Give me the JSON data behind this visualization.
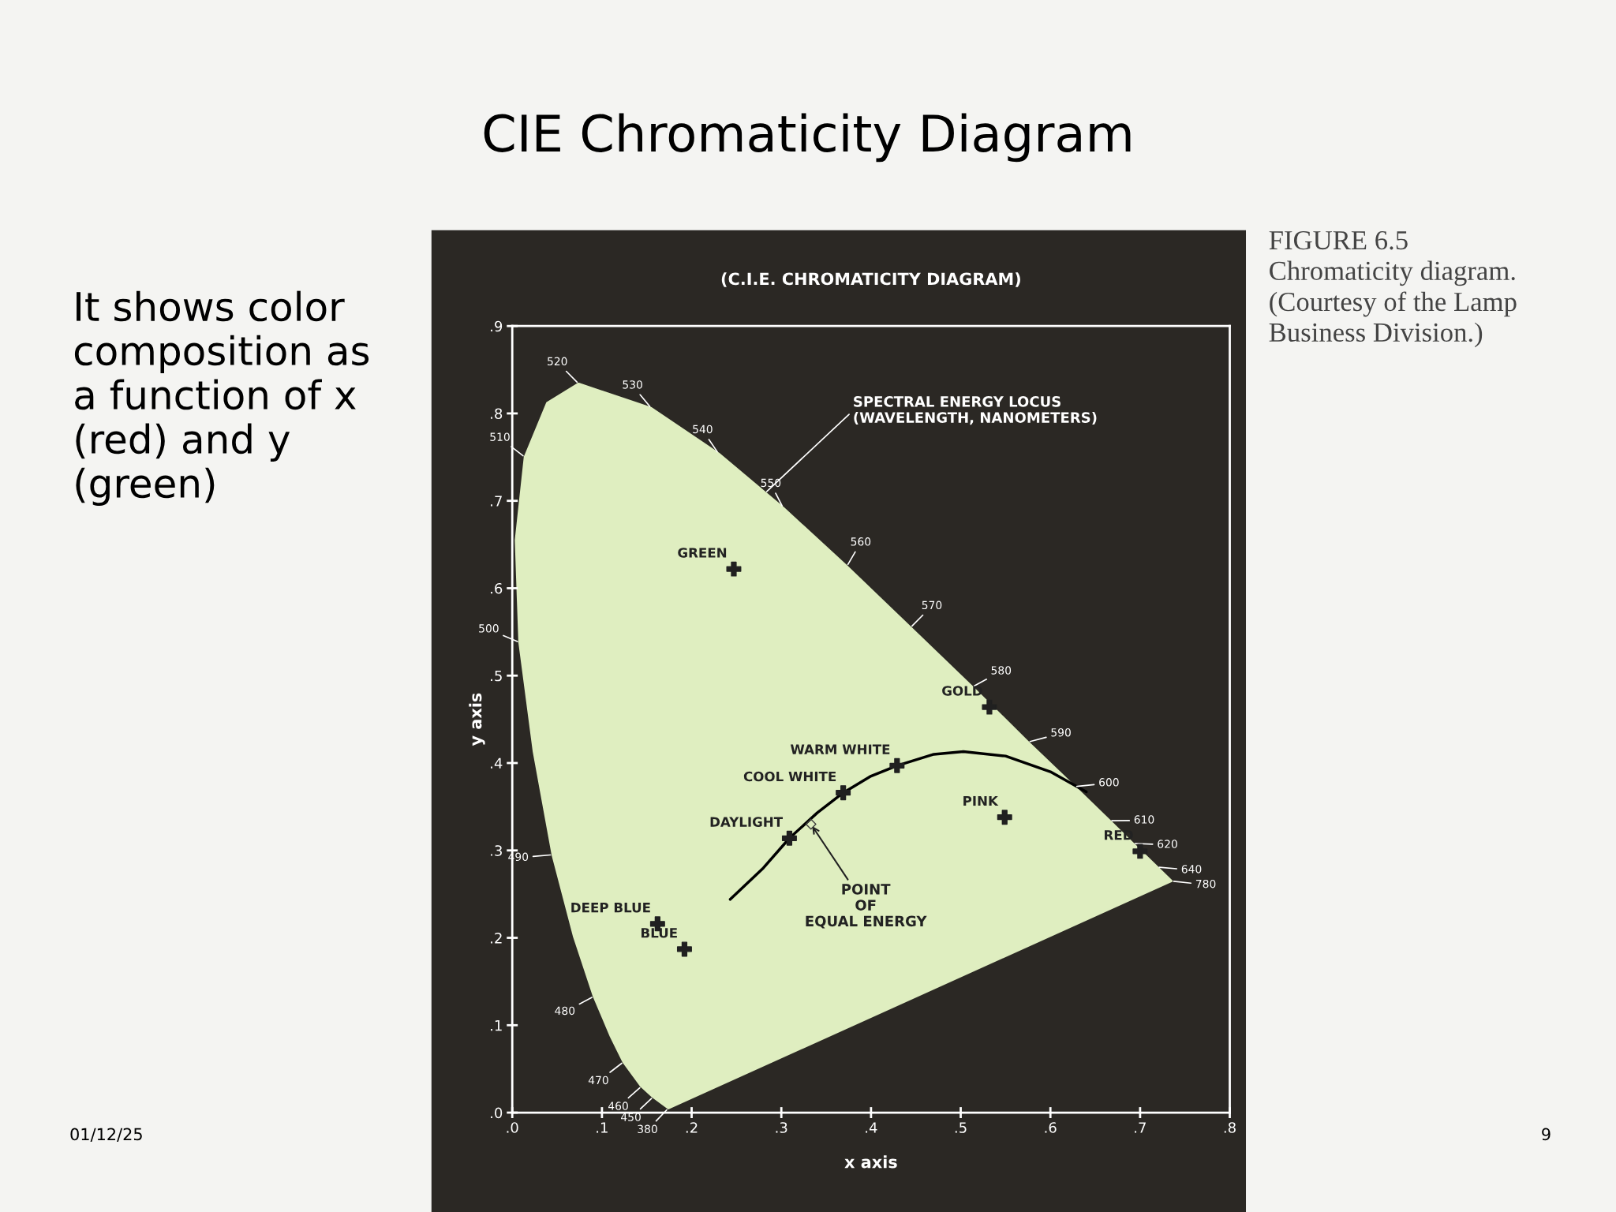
{
  "chart_data": {
    "type": "line",
    "title": "CIE Chromaticity Diagram",
    "subtitle": "(C.I.E. CHROMATICITY DIAGRAM)",
    "xlabel": "x axis",
    "ylabel": "y axis",
    "xlim": [
      0,
      0.8
    ],
    "ylim": [
      0,
      0.9
    ],
    "xticks": [
      {
        "value": 0,
        "label": ".0"
      },
      {
        "value": 0.1,
        "label": ".1"
      },
      {
        "value": 0.2,
        "label": ".2"
      },
      {
        "value": 0.3,
        "label": ".3"
      },
      {
        "value": 0.4,
        "label": ".4"
      },
      {
        "value": 0.5,
        "label": ".5"
      },
      {
        "value": 0.6,
        "label": ".6"
      },
      {
        "value": 0.7,
        "label": ".7"
      },
      {
        "value": 0.8,
        "label": ".8"
      }
    ],
    "yticks": [
      {
        "value": 0,
        "label": ".0"
      },
      {
        "value": 0.1,
        "label": ".1"
      },
      {
        "value": 0.2,
        "label": ".2"
      },
      {
        "value": 0.3,
        "label": ".3"
      },
      {
        "value": 0.4,
        "label": ".4"
      },
      {
        "value": 0.5,
        "label": ".5"
      },
      {
        "value": 0.6,
        "label": ".6"
      },
      {
        "value": 0.7,
        "label": ".7"
      },
      {
        "value": 0.8,
        "label": ".8"
      },
      {
        "value": 0.9,
        "label": ".9"
      }
    ],
    "grid": false,
    "legend": false,
    "series": [
      {
        "type": "area",
        "color": "#dfeec0",
        "x": [
          0.174,
          0.157,
          0.144,
          0.124,
          0.11,
          0.091,
          0.069,
          0.045,
          0.024,
          0.008,
          0.004,
          0.014,
          0.039,
          0.074,
          0.155,
          0.23,
          0.302,
          0.373,
          0.444,
          0.513,
          0.575,
          0.627,
          0.666,
          0.692,
          0.719,
          0.735,
          0.174
        ],
        "values": [
          0.005,
          0.018,
          0.03,
          0.058,
          0.087,
          0.133,
          0.201,
          0.295,
          0.413,
          0.538,
          0.655,
          0.75,
          0.812,
          0.834,
          0.806,
          0.754,
          0.692,
          0.625,
          0.555,
          0.487,
          0.424,
          0.373,
          0.334,
          0.308,
          0.281,
          0.265,
          0.005
        ]
      },
      {
        "color": "#000000",
        "x": [
          0.243,
          0.28,
          0.309,
          0.34,
          0.369,
          0.4,
          0.429,
          0.47,
          0.503,
          0.55,
          0.6,
          0.64
        ],
        "values": [
          0.244,
          0.28,
          0.314,
          0.343,
          0.366,
          0.385,
          0.397,
          0.41,
          0.413,
          0.408,
          0.39,
          0.367
        ]
      },
      {
        "type": "scatter",
        "color": "#202020",
        "marker": "cross",
        "x": [
          0.247,
          0.532,
          0.429,
          0.369,
          0.309,
          0.549,
          0.7,
          0.162,
          0.192
        ],
        "values": [
          0.622,
          0.464,
          0.397,
          0.366,
          0.314,
          0.338,
          0.299,
          0.216,
          0.187
        ]
      },
      {
        "type": "scatter",
        "color": "#404040",
        "marker": "diamond",
        "x": [
          0.333
        ],
        "values": [
          0.33
        ]
      }
    ],
    "annotations": [
      "It shows color composition as a function of x (red) and y (green)",
      "FIGURE 6.5\nChromaticity diagram. (Courtesy of the Lamp Business Division.)",
      "01/12/25",
      "9",
      {
        "text": "380",
        "x": 0.174,
        "y": 0.005
      },
      {
        "text": "450",
        "x": 0.157,
        "y": 0.018
      },
      {
        "text": "460",
        "x": 0.144,
        "y": 0.03
      },
      {
        "text": "470",
        "x": 0.124,
        "y": 0.058
      },
      {
        "text": "480",
        "x": 0.091,
        "y": 0.133
      },
      {
        "text": "490",
        "x": 0.045,
        "y": 0.295
      },
      {
        "text": "500",
        "x": 0.008,
        "y": 0.538
      },
      {
        "text": "510",
        "x": 0.014,
        "y": 0.75
      },
      {
        "text": "520",
        "x": 0.074,
        "y": 0.834
      },
      {
        "text": "530",
        "x": 0.155,
        "y": 0.806
      },
      {
        "text": "540",
        "x": 0.23,
        "y": 0.754
      },
      {
        "text": "550",
        "x": 0.302,
        "y": 0.692
      },
      {
        "text": "560",
        "x": 0.373,
        "y": 0.625
      },
      {
        "text": "570",
        "x": 0.444,
        "y": 0.555
      },
      {
        "text": "580",
        "x": 0.513,
        "y": 0.487
      },
      {
        "text": "590",
        "x": 0.575,
        "y": 0.424
      },
      {
        "text": "600",
        "x": 0.627,
        "y": 0.373
      },
      {
        "text": "610",
        "x": 0.666,
        "y": 0.334
      },
      {
        "text": "620",
        "x": 0.692,
        "y": 0.308
      },
      {
        "text": "640",
        "x": 0.719,
        "y": 0.281
      },
      {
        "text": "780",
        "x": 0.735,
        "y": 0.265
      },
      {
        "text": "GREEN",
        "x": 0.247,
        "y": 0.622
      },
      {
        "text": "GOLD",
        "x": 0.532,
        "y": 0.464
      },
      {
        "text": "WARM WHITE",
        "x": 0.429,
        "y": 0.397
      },
      {
        "text": "COOL WHITE",
        "x": 0.369,
        "y": 0.366
      },
      {
        "text": "DAYLIGHT",
        "x": 0.309,
        "y": 0.314
      },
      {
        "text": "PINK",
        "x": 0.549,
        "y": 0.338
      },
      {
        "text": "RED",
        "x": 0.7,
        "y": 0.299
      },
      {
        "text": "DEEP BLUE",
        "x": 0.162,
        "y": 0.216
      },
      {
        "text": "BLUE",
        "x": 0.192,
        "y": 0.187
      },
      {
        "text": "POINT\nOF\nEQUAL ENERGY",
        "x": 0.333,
        "y": 0.33
      },
      {
        "text": "SPECTRAL ENERGY LOCUS\n(WAVELENGTH, NANOMETERS)",
        "x": 0.282,
        "y": 0.709
      }
    ]
  }
}
